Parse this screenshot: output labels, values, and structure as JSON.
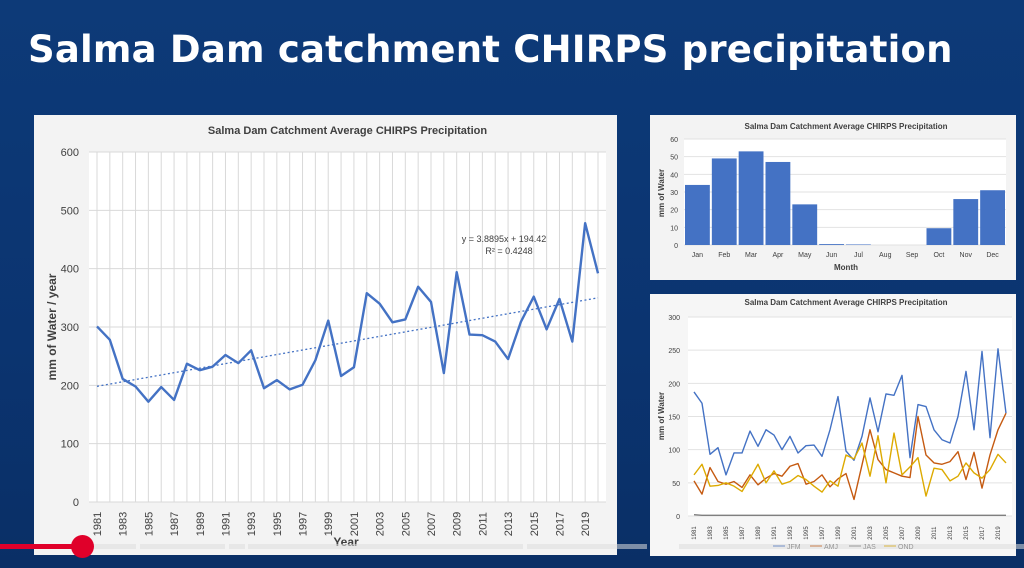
{
  "slide": {
    "title": "Salma Dam catchment CHIRPS precipitation"
  },
  "video": {
    "played_fraction": 0.08
  },
  "chart_data": [
    {
      "type": "line",
      "title": "Salma Dam Catchment Average CHIRPS Precipitation",
      "xlabel": "Year",
      "ylabel": "mm of Water / year",
      "ylim": [
        0,
        600
      ],
      "yticks": [
        0,
        100,
        200,
        300,
        400,
        500,
        600
      ],
      "xlim": [
        1981,
        2020
      ],
      "xticks": [
        "1981",
        "1983",
        "1985",
        "1987",
        "1989",
        "1991",
        "1993",
        "1995",
        "1997",
        "1999",
        "2001",
        "2003",
        "2005",
        "2007",
        "2009",
        "2011",
        "2013",
        "2015",
        "2017",
        "2019"
      ],
      "x": [
        1981,
        1982,
        1983,
        1984,
        1985,
        1986,
        1987,
        1988,
        1989,
        1990,
        1991,
        1992,
        1993,
        1994,
        1995,
        1996,
        1997,
        1998,
        1999,
        2000,
        2001,
        2002,
        2003,
        2004,
        2005,
        2006,
        2007,
        2008,
        2009,
        2010,
        2011,
        2012,
        2013,
        2014,
        2015,
        2016,
        2017,
        2018,
        2019,
        2020
      ],
      "series": [
        {
          "values": [
            301,
            278,
            211,
            198,
            172,
            197,
            175,
            237,
            226,
            232,
            252,
            238,
            260,
            195,
            209,
            193,
            201,
            243,
            311,
            216,
            231,
            358,
            340,
            308,
            313,
            369,
            343,
            221,
            394,
            287,
            286,
            275,
            245,
            309,
            352,
            296,
            348,
            275,
            478,
            392
          ]
        }
      ],
      "trendline": {
        "equation": "y = 3.8895x + 194.42",
        "r_squared": "R² = 0.4248",
        "slope": 3.8895,
        "intercept": 194.42
      },
      "grid": true,
      "colors": {
        "line": "#4472c4",
        "grid": "#d9d9d9"
      }
    },
    {
      "type": "bar",
      "title": "Salma Dam Catchment Average CHIRPS Precipitation",
      "xlabel": "Month",
      "ylabel": "mm of Water",
      "ylim": [
        0,
        60
      ],
      "yticks": [
        0,
        10,
        20,
        30,
        40,
        50,
        60
      ],
      "categories": [
        "Jan",
        "Feb",
        "Mar",
        "Apr",
        "May",
        "Jun",
        "Jul",
        "Aug",
        "Sep",
        "Oct",
        "Nov",
        "Dec"
      ],
      "values": [
        34,
        49,
        53,
        47,
        23,
        0.5,
        0.3,
        0,
        0,
        9.5,
        26,
        31
      ],
      "grid": true,
      "colors": {
        "bar": "#4472c4"
      }
    },
    {
      "type": "line",
      "title": "Salma Dam Catchment Average CHIRPS Precipitation",
      "xlabel": "",
      "ylabel": "mm of Water",
      "ylim": [
        0,
        300
      ],
      "yticks": [
        0,
        50,
        100,
        150,
        200,
        250,
        300
      ],
      "x": [
        1981,
        1982,
        1983,
        1984,
        1985,
        1986,
        1987,
        1988,
        1989,
        1990,
        1991,
        1992,
        1993,
        1994,
        1995,
        1996,
        1997,
        1998,
        1999,
        2000,
        2001,
        2002,
        2003,
        2004,
        2005,
        2006,
        2007,
        2008,
        2009,
        2010,
        2011,
        2012,
        2013,
        2014,
        2015,
        2016,
        2017,
        2018,
        2019,
        2020
      ],
      "xticks": [
        "1981",
        "1983",
        "1985",
        "1987",
        "1989",
        "1991",
        "1993",
        "1995",
        "1997",
        "1999",
        "2001",
        "2003",
        "2005",
        "2007",
        "2009",
        "2011",
        "2013",
        "2015",
        "2017",
        "2019"
      ],
      "legend": "bottom",
      "series": [
        {
          "name": "JFM",
          "color": "#4472c4",
          "values": [
            187,
            170,
            93,
            103,
            62,
            95,
            95,
            128,
            105,
            130,
            122,
            100,
            120,
            95,
            106,
            107,
            90,
            130,
            180,
            98,
            84,
            120,
            178,
            127,
            184,
            182,
            212,
            88,
            168,
            165,
            130,
            115,
            110,
            150,
            218,
            130,
            248,
            118,
            252,
            155
          ]
        },
        {
          "name": "AMJ",
          "color": "#c55a11",
          "values": [
            53,
            33,
            73,
            52,
            48,
            52,
            43,
            62,
            47,
            57,
            64,
            60,
            75,
            79,
            48,
            52,
            62,
            44,
            56,
            64,
            25,
            77,
            130,
            85,
            70,
            65,
            60,
            58,
            150,
            92,
            80,
            78,
            82,
            97,
            55,
            96,
            42,
            92,
            130,
            155
          ]
        },
        {
          "name": "JAS",
          "color": "#7f7f7f",
          "values": [
            2,
            1,
            1,
            1,
            1,
            1,
            1,
            1,
            1,
            1,
            1,
            1,
            1,
            1,
            1,
            1,
            1,
            1,
            1,
            1,
            1,
            1,
            1,
            1,
            1,
            1,
            1,
            1,
            1,
            1,
            1,
            1,
            1,
            1,
            1,
            1,
            1,
            1,
            1,
            1
          ]
        },
        {
          "name": "OND",
          "color": "#ddaa00",
          "values": [
            62,
            78,
            45,
            46,
            50,
            45,
            37,
            57,
            78,
            50,
            68,
            48,
            52,
            61,
            55,
            45,
            36,
            53,
            45,
            92,
            86,
            110,
            60,
            121,
            50,
            125,
            62,
            74,
            88,
            30,
            72,
            70,
            53,
            60,
            80,
            65,
            57,
            70,
            93,
            80
          ]
        }
      ],
      "grid": true
    }
  ]
}
